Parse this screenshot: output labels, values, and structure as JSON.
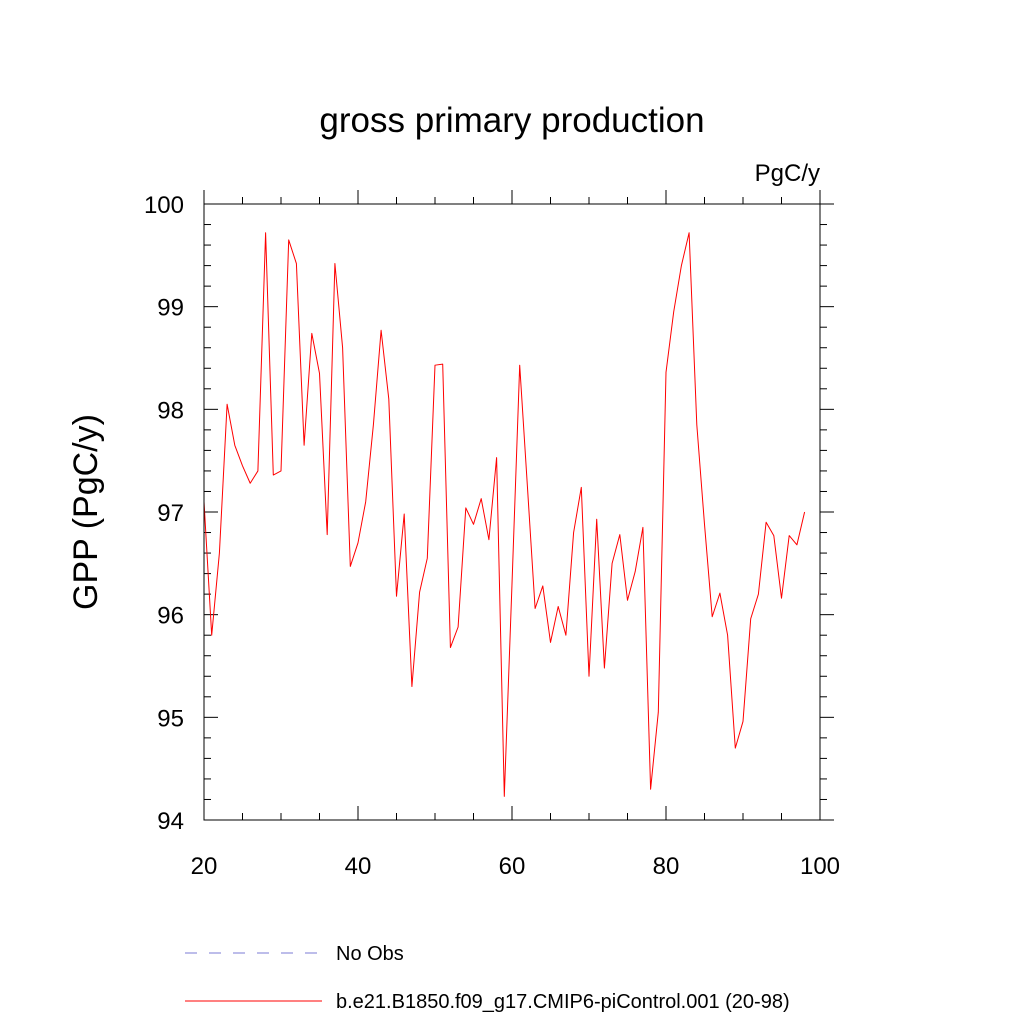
{
  "chart_data": {
    "type": "line",
    "title": "gross primary production",
    "units": "PgC/y",
    "ylabel": "GPP  (PgC/y)",
    "xlabel": "",
    "xlim": [
      20,
      100
    ],
    "ylim": [
      94,
      100
    ],
    "x_ticks": [
      20,
      40,
      60,
      80,
      100
    ],
    "y_ticks": [
      94,
      95,
      96,
      97,
      98,
      99,
      100
    ],
    "x_minor_step": 5,
    "y_minor_step": 0.2,
    "grid": false,
    "legend_position": "bottom",
    "series": [
      {
        "name": "No Obs",
        "color": "#7b7bd6",
        "style": "dashed",
        "x": [],
        "y": []
      },
      {
        "name": "b.e21.B1850.f09_g17.CMIP6-piControl.001 (20-98)",
        "color": "#ff0000",
        "style": "solid",
        "x": [
          20,
          21,
          22,
          23,
          24,
          25,
          26,
          27,
          28,
          29,
          30,
          31,
          32,
          33,
          34,
          35,
          36,
          37,
          38,
          39,
          40,
          41,
          42,
          43,
          44,
          45,
          46,
          47,
          48,
          49,
          50,
          51,
          52,
          53,
          54,
          55,
          56,
          57,
          58,
          59,
          60,
          61,
          62,
          63,
          64,
          65,
          66,
          67,
          68,
          69,
          70,
          71,
          72,
          73,
          74,
          75,
          76,
          77,
          78,
          79,
          80,
          81,
          82,
          83,
          84,
          85,
          86,
          87,
          88,
          89,
          90,
          91,
          92,
          93,
          94,
          95,
          96,
          97,
          98
        ],
        "y": [
          97.1,
          95.8,
          96.6,
          98.05,
          97.65,
          97.45,
          97.28,
          97.4,
          99.72,
          97.36,
          97.4,
          99.65,
          99.42,
          97.65,
          98.74,
          98.35,
          96.78,
          99.42,
          98.6,
          96.47,
          96.7,
          97.1,
          97.85,
          98.77,
          98.1,
          96.18,
          96.98,
          95.3,
          96.22,
          96.55,
          98.43,
          98.44,
          95.68,
          95.88,
          97.04,
          96.88,
          97.13,
          96.73,
          97.53,
          94.23,
          96.3,
          98.43,
          97.25,
          96.06,
          96.28,
          95.73,
          96.08,
          95.8,
          96.8,
          97.24,
          95.4,
          96.93,
          95.48,
          96.5,
          96.78,
          96.14,
          96.42,
          96.85,
          94.3,
          95.05,
          98.36,
          98.95,
          99.4,
          99.72,
          97.85,
          96.88,
          95.98,
          96.21,
          95.8,
          94.7,
          94.96,
          95.96,
          96.2,
          96.9,
          96.77,
          96.16,
          96.77,
          96.68,
          97.0
        ]
      }
    ]
  }
}
